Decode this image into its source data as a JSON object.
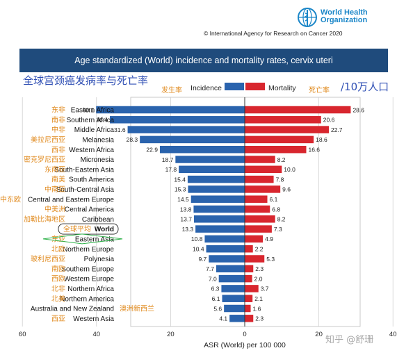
{
  "header": {
    "org_name_line1": "World Health",
    "org_name_line2": "Organization",
    "copyright": "© International Agency for Research on Cancer 2020",
    "title": "Age standardized (World) incidence and mortality rates, cervix uteri"
  },
  "annotations": {
    "chinese_title": "全球宫颈癌发病率与死亡率",
    "unit_note": "/10万人口",
    "incidence_cn": "发生率",
    "mortality_cn": "死亡率"
  },
  "watermark": "知乎 @舒珊",
  "colors": {
    "incidence": "#2a63ad",
    "mortality": "#d8262e",
    "header_bar": "#1f4b7c",
    "annotation_orange": "#e08a1e",
    "annotation_blue": "#2f4fb4"
  },
  "chart_data": {
    "type": "bar",
    "orientation": "horizontal-diverging",
    "xlabel": "ASR (World) per 100 000",
    "xlim": [
      -60,
      60
    ],
    "xticks": [
      60,
      40,
      20,
      0,
      20,
      40,
      60
    ],
    "legend": [
      "Incidence",
      "Mortality"
    ],
    "legend_position": "top",
    "grid": true,
    "categories": [
      "Eastern Africa",
      "Southern Africa",
      "Middle Africa",
      "Melanesia",
      "Western Africa",
      "Micronesia",
      "South-Eastern Asia",
      "South America",
      "South-Central Asia",
      "Central and Eastern Europe",
      "Central America",
      "Caribbean",
      "World",
      "Eastern Asia",
      "Northern Europe",
      "Polynesia",
      "Southern Europe",
      "Western Europe",
      "Northern Africa",
      "Northern America",
      "Australia and New Zealand",
      "Western Asia"
    ],
    "categories_cn": [
      "东非",
      "南非",
      "中非",
      "美拉尼西亚",
      "西非",
      "密克罗尼西亚",
      "东南亚",
      "南美",
      "中南亚",
      "中东欧",
      "中美洲",
      "加勒比海地区",
      "全球平均",
      "东亚",
      "北欧",
      "玻利尼西亚",
      "南欧",
      "西欧",
      "北非",
      "北美",
      "澳洲新西兰",
      "西亚"
    ],
    "series": [
      {
        "name": "Incidence",
        "values": [
          40.1,
          36.4,
          31.6,
          28.3,
          22.9,
          18.7,
          17.8,
          15.4,
          15.3,
          14.5,
          13.8,
          13.7,
          13.3,
          10.8,
          10.4,
          9.7,
          7.7,
          7.0,
          6.3,
          6.1,
          5.6,
          4.1
        ]
      },
      {
        "name": "Mortality",
        "values": [
          28.6,
          20.6,
          22.7,
          18.6,
          16.6,
          8.2,
          10.0,
          7.8,
          9.6,
          6.1,
          6.8,
          8.2,
          7.3,
          4.9,
          2.2,
          5.3,
          2.3,
          2.0,
          3.7,
          2.1,
          1.6,
          2.3
        ]
      }
    ]
  }
}
